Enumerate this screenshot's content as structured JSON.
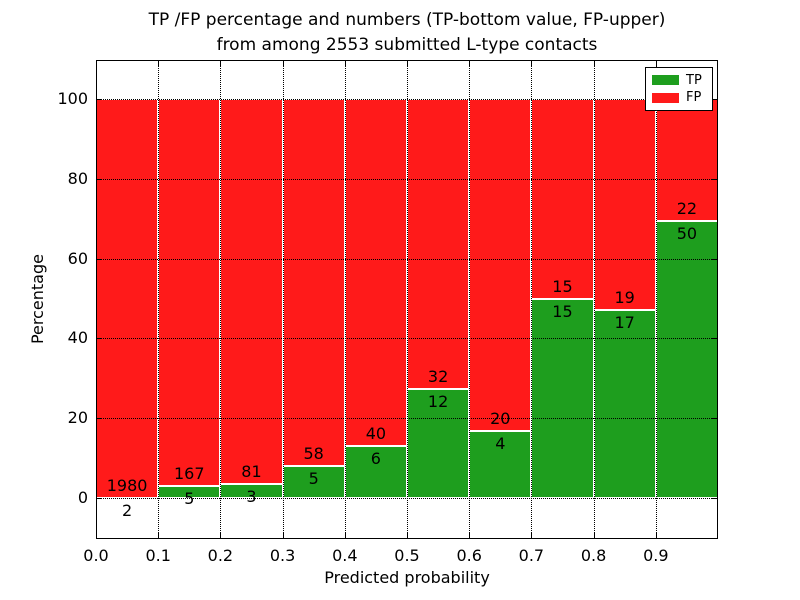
{
  "title": {
    "line1": "TP /FP percentage and numbers (TP-bottom value, FP-upper)",
    "line2": "from among 2553 submitted L-type contacts"
  },
  "chart_data": {
    "type": "bar",
    "stacked": true,
    "title": "TP /FP percentage and numbers (TP-bottom value, FP-upper) from among 2553 submitted L-type contacts",
    "xlabel": "Predicted probability",
    "ylabel": "Percentage",
    "total_contacts": 2553,
    "bin_edges": [
      0.0,
      0.1,
      0.2,
      0.3,
      0.4,
      0.5,
      0.6,
      0.7,
      0.8,
      0.9,
      1.0
    ],
    "categories": [
      "0.0-0.1",
      "0.1-0.2",
      "0.2-0.3",
      "0.3-0.4",
      "0.4-0.5",
      "0.5-0.6",
      "0.6-0.7",
      "0.7-0.8",
      "0.8-0.9",
      "0.9-1.0"
    ],
    "x_tick_labels": [
      "0.0",
      "0.1",
      "0.2",
      "0.3",
      "0.4",
      "0.5",
      "0.6",
      "0.7",
      "0.8",
      "0.9"
    ],
    "y_ticks": [
      0,
      20,
      40,
      60,
      80,
      100
    ],
    "ylim": [
      -10.3,
      109.8
    ],
    "xlim": [
      0.0,
      1.0
    ],
    "grid": "dotted",
    "legend_position": "upper right",
    "label_note": "FP count printed above TP/FP boundary, TP count below",
    "series": [
      {
        "name": "TP",
        "color": "#1E9E1E",
        "counts": [
          2,
          5,
          3,
          5,
          6,
          12,
          4,
          15,
          17,
          50
        ],
        "percent": [
          0.1,
          2.91,
          3.57,
          7.94,
          13.04,
          27.27,
          16.67,
          50.0,
          47.22,
          69.44
        ]
      },
      {
        "name": "FP",
        "color": "#FF1A1A",
        "counts": [
          1980,
          167,
          81,
          58,
          40,
          32,
          20,
          15,
          19,
          22
        ],
        "percent": [
          99.9,
          97.09,
          96.43,
          92.06,
          86.96,
          72.73,
          83.33,
          50.0,
          52.78,
          30.56
        ]
      }
    ]
  }
}
